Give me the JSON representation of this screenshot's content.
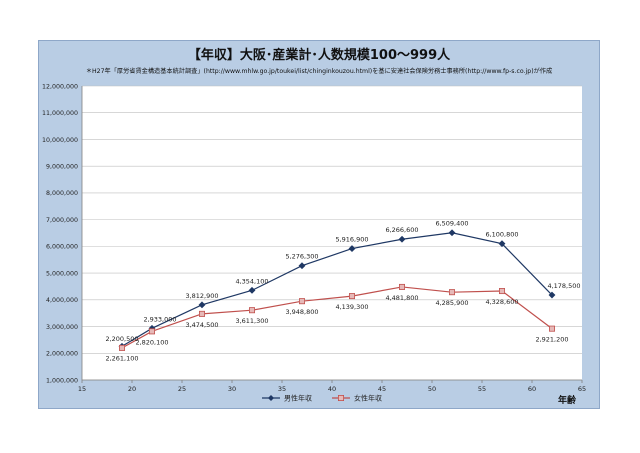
{
  "chart_data": {
    "type": "line",
    "title": "【年収】大阪･産業計･人数規模100～999人",
    "subtitle": "＊H27年「厚労省賃金構造基本統計調査」(http://www.mhlw.go.jp/toukei/list/chinginkouzou.html)を基に安達社会保険労務士事務所(http://www.fp-s.co.jp)が作成",
    "xlabel": "年齢",
    "ylabel": "",
    "xlim": [
      15,
      65
    ],
    "ylim": [
      1000000,
      12000000
    ],
    "x_ticks": [
      "15",
      "20",
      "25",
      "30",
      "35",
      "40",
      "45",
      "50",
      "55",
      "60",
      "65"
    ],
    "y_ticks": [
      "1,000,000",
      "2,000,000",
      "3,000,000",
      "4,000,000",
      "5,000,000",
      "6,000,000",
      "7,000,000",
      "8,000,000",
      "9,000,000",
      "10,000,000",
      "11,000,000",
      "12,000,000"
    ],
    "grid": true,
    "legend_position": "bottom",
    "x": [
      19,
      22,
      27,
      32,
      37,
      42,
      47,
      52,
      57,
      62
    ],
    "series": [
      {
        "name": "男性年収",
        "color": "#1f3864",
        "marker": "diamond",
        "values": [
          2261100,
          2933000,
          3812900,
          4354100,
          5276300,
          5916900,
          6266600,
          6509400,
          6100800,
          4178500
        ],
        "labels": [
          "2,261,100",
          "2,933,000",
          "3,812,900",
          "4,354,100",
          "5,276,300",
          "5,916,900",
          "6,266,600",
          "6,509,400",
          "6,100,800",
          "4,178,500"
        ]
      },
      {
        "name": "女性年収",
        "color": "#c0504d",
        "marker": "square",
        "values": [
          2200500,
          2820100,
          3474500,
          3611300,
          3948800,
          4139300,
          4481800,
          4285900,
          4328600,
          2921200
        ],
        "labels": [
          "2,200,500",
          "2,820,100",
          "3,474,500",
          "3,611,300",
          "3,948,800",
          "4,139,300",
          "4,481,800",
          "4,285,900",
          "4,328,600",
          "2,921,200"
        ]
      }
    ]
  }
}
